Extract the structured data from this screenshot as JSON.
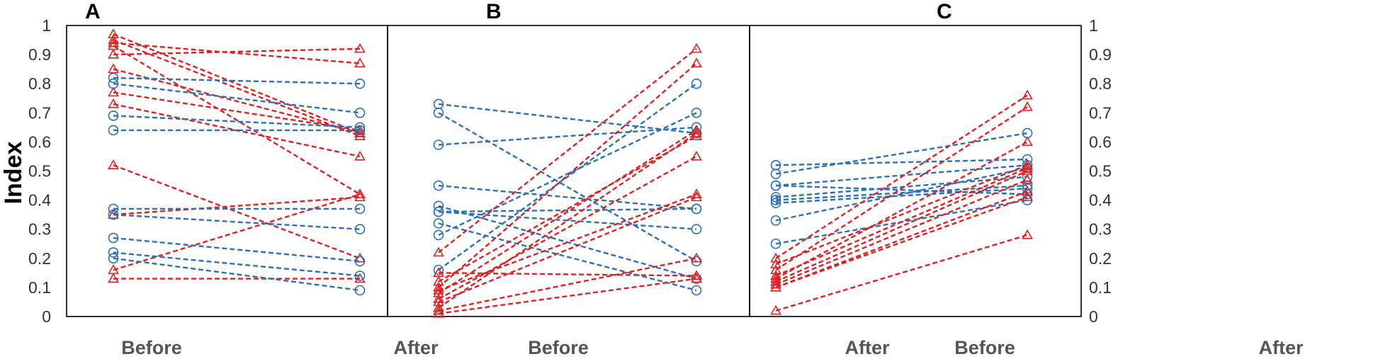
{
  "colors": {
    "before_higher": "#e02020",
    "after_higher": "#2a6fb8",
    "frame": "#000000"
  },
  "yaxis": {
    "label": "Index",
    "ticks": [
      "0",
      "0.1",
      "0.2",
      "0.3",
      "0.4",
      "0.5",
      "0.6",
      "0.7",
      "0.8",
      "0.9",
      "1"
    ]
  },
  "chart_data": [
    {
      "panel": "A",
      "type": "line",
      "categories": [
        "Before",
        "After"
      ],
      "ylabel": "Index",
      "ylim": [
        0,
        1
      ],
      "series": [
        {
          "marker": "triangle",
          "color": "red",
          "values": [
            0.97,
            0.63
          ]
        },
        {
          "marker": "triangle",
          "color": "red",
          "values": [
            0.95,
            0.62
          ]
        },
        {
          "marker": "triangle",
          "color": "red",
          "values": [
            0.93,
            0.42
          ]
        },
        {
          "marker": "triangle",
          "color": "red",
          "values": [
            0.9,
            0.92
          ]
        },
        {
          "marker": "triangle",
          "color": "red",
          "values": [
            0.94,
            0.87
          ]
        },
        {
          "marker": "triangle",
          "color": "red",
          "values": [
            0.85,
            0.63
          ]
        },
        {
          "marker": "triangle",
          "color": "red",
          "values": [
            0.77,
            0.64
          ]
        },
        {
          "marker": "triangle",
          "color": "red",
          "values": [
            0.73,
            0.55
          ]
        },
        {
          "marker": "triangle",
          "color": "red",
          "values": [
            0.52,
            0.2
          ]
        },
        {
          "marker": "triangle",
          "color": "red",
          "values": [
            0.35,
            0.41
          ]
        },
        {
          "marker": "triangle",
          "color": "red",
          "values": [
            0.16,
            0.42
          ]
        },
        {
          "marker": "triangle",
          "color": "red",
          "values": [
            0.13,
            0.13
          ]
        },
        {
          "marker": "circle",
          "color": "blue",
          "values": [
            0.82,
            0.8
          ]
        },
        {
          "marker": "circle",
          "color": "blue",
          "values": [
            0.8,
            0.7
          ]
        },
        {
          "marker": "circle",
          "color": "blue",
          "values": [
            0.69,
            0.65
          ]
        },
        {
          "marker": "circle",
          "color": "blue",
          "values": [
            0.64,
            0.64
          ]
        },
        {
          "marker": "circle",
          "color": "blue",
          "values": [
            0.37,
            0.37
          ]
        },
        {
          "marker": "circle",
          "color": "blue",
          "values": [
            0.35,
            0.3
          ]
        },
        {
          "marker": "circle",
          "color": "blue",
          "values": [
            0.27,
            0.19
          ]
        },
        {
          "marker": "circle",
          "color": "blue",
          "values": [
            0.22,
            0.14
          ]
        },
        {
          "marker": "circle",
          "color": "blue",
          "values": [
            0.2,
            0.09
          ]
        }
      ]
    },
    {
      "panel": "B",
      "type": "line",
      "categories": [
        "Before",
        "After"
      ],
      "ylim": [
        0,
        1
      ],
      "series": [
        {
          "marker": "circle",
          "color": "blue",
          "values": [
            0.73,
            0.63
          ]
        },
        {
          "marker": "circle",
          "color": "blue",
          "values": [
            0.7,
            0.19
          ]
        },
        {
          "marker": "circle",
          "color": "blue",
          "values": [
            0.59,
            0.65
          ]
        },
        {
          "marker": "circle",
          "color": "blue",
          "values": [
            0.45,
            0.37
          ]
        },
        {
          "marker": "circle",
          "color": "blue",
          "values": [
            0.38,
            0.13
          ]
        },
        {
          "marker": "circle",
          "color": "blue",
          "values": [
            0.36,
            0.3
          ]
        },
        {
          "marker": "circle",
          "color": "blue",
          "values": [
            0.36,
            0.37
          ]
        },
        {
          "marker": "circle",
          "color": "blue",
          "values": [
            0.32,
            0.09
          ]
        },
        {
          "marker": "circle",
          "color": "blue",
          "values": [
            0.28,
            0.7
          ]
        },
        {
          "marker": "circle",
          "color": "blue",
          "values": [
            0.16,
            0.8
          ]
        },
        {
          "marker": "triangle",
          "color": "red",
          "values": [
            0.22,
            0.92
          ]
        },
        {
          "marker": "triangle",
          "color": "red",
          "values": [
            0.15,
            0.14
          ]
        },
        {
          "marker": "triangle",
          "color": "red",
          "values": [
            0.12,
            0.62
          ]
        },
        {
          "marker": "triangle",
          "color": "red",
          "values": [
            0.1,
            0.87
          ]
        },
        {
          "marker": "triangle",
          "color": "red",
          "values": [
            0.09,
            0.42
          ]
        },
        {
          "marker": "triangle",
          "color": "red",
          "values": [
            0.08,
            0.64
          ]
        },
        {
          "marker": "triangle",
          "color": "red",
          "values": [
            0.06,
            0.55
          ]
        },
        {
          "marker": "triangle",
          "color": "red",
          "values": [
            0.05,
            0.41
          ]
        },
        {
          "marker": "triangle",
          "color": "red",
          "values": [
            0.03,
            0.63
          ]
        },
        {
          "marker": "triangle",
          "color": "red",
          "values": [
            0.02,
            0.2
          ]
        },
        {
          "marker": "triangle",
          "color": "red",
          "values": [
            0.01,
            0.13
          ]
        }
      ]
    },
    {
      "panel": "C",
      "type": "line",
      "categories": [
        "Before",
        "After"
      ],
      "ylim": [
        0,
        1
      ],
      "series": [
        {
          "marker": "circle",
          "color": "blue",
          "values": [
            0.52,
            0.54
          ]
        },
        {
          "marker": "circle",
          "color": "blue",
          "values": [
            0.49,
            0.63
          ]
        },
        {
          "marker": "circle",
          "color": "blue",
          "values": [
            0.45,
            0.52
          ]
        },
        {
          "marker": "circle",
          "color": "blue",
          "values": [
            0.45,
            0.42
          ]
        },
        {
          "marker": "circle",
          "color": "blue",
          "values": [
            0.41,
            0.48
          ]
        },
        {
          "marker": "circle",
          "color": "blue",
          "values": [
            0.4,
            0.45
          ]
        },
        {
          "marker": "circle",
          "color": "blue",
          "values": [
            0.39,
            0.44
          ]
        },
        {
          "marker": "circle",
          "color": "blue",
          "values": [
            0.33,
            0.51
          ]
        },
        {
          "marker": "circle",
          "color": "blue",
          "values": [
            0.25,
            0.4
          ]
        },
        {
          "marker": "triangle",
          "color": "red",
          "values": [
            0.2,
            0.76
          ]
        },
        {
          "marker": "triangle",
          "color": "red",
          "values": [
            0.18,
            0.52
          ]
        },
        {
          "marker": "triangle",
          "color": "red",
          "values": [
            0.16,
            0.72
          ]
        },
        {
          "marker": "triangle",
          "color": "red",
          "values": [
            0.14,
            0.51
          ]
        },
        {
          "marker": "triangle",
          "color": "red",
          "values": [
            0.13,
            0.6
          ]
        },
        {
          "marker": "triangle",
          "color": "red",
          "values": [
            0.12,
            0.5
          ]
        },
        {
          "marker": "triangle",
          "color": "red",
          "values": [
            0.11,
            0.47
          ]
        },
        {
          "marker": "triangle",
          "color": "red",
          "values": [
            0.1,
            0.43
          ]
        },
        {
          "marker": "triangle",
          "color": "red",
          "values": [
            0.1,
            0.41
          ]
        },
        {
          "marker": "triangle",
          "color": "red",
          "values": [
            0.02,
            0.28
          ]
        }
      ]
    }
  ]
}
